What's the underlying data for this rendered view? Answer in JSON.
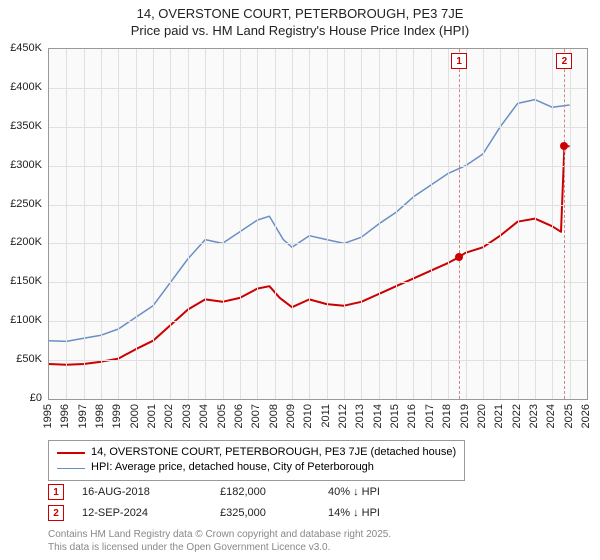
{
  "title": {
    "line1": "14, OVERSTONE COURT, PETERBOROUGH, PE3 7JE",
    "line2": "Price paid vs. HM Land Registry's House Price Index (HPI)"
  },
  "chart": {
    "type": "line",
    "background_color": "#fafafa",
    "grid_color": "#e0e0e0",
    "border_color": "#999999",
    "xlim": [
      1995,
      2026
    ],
    "ylim": [
      0,
      450000
    ],
    "ytick_step": 50000,
    "yticks": [
      {
        "v": 0,
        "label": "£0"
      },
      {
        "v": 50000,
        "label": "£50K"
      },
      {
        "v": 100000,
        "label": "£100K"
      },
      {
        "v": 150000,
        "label": "£150K"
      },
      {
        "v": 200000,
        "label": "£200K"
      },
      {
        "v": 250000,
        "label": "£250K"
      },
      {
        "v": 300000,
        "label": "£300K"
      },
      {
        "v": 350000,
        "label": "£350K"
      },
      {
        "v": 400000,
        "label": "£400K"
      },
      {
        "v": 450000,
        "label": "£450K"
      }
    ],
    "xticks": [
      1995,
      1996,
      1997,
      1998,
      1999,
      2000,
      2001,
      2002,
      2003,
      2004,
      2005,
      2006,
      2007,
      2008,
      2009,
      2010,
      2011,
      2012,
      2013,
      2014,
      2015,
      2016,
      2017,
      2018,
      2019,
      2020,
      2021,
      2022,
      2023,
      2024,
      2025,
      2026
    ],
    "series": [
      {
        "name": "price_paid",
        "label": "14, OVERSTONE COURT, PETERBOROUGH, PE3 7JE (detached house)",
        "color": "#cc0000",
        "line_width": 2,
        "points": [
          [
            1995.0,
            45000
          ],
          [
            1996.0,
            44000
          ],
          [
            1997.0,
            45000
          ],
          [
            1998.0,
            48000
          ],
          [
            1999.0,
            52000
          ],
          [
            2000.0,
            64000
          ],
          [
            2001.0,
            75000
          ],
          [
            2002.0,
            95000
          ],
          [
            2003.0,
            115000
          ],
          [
            2004.0,
            128000
          ],
          [
            2005.0,
            125000
          ],
          [
            2006.0,
            130000
          ],
          [
            2007.0,
            142000
          ],
          [
            2007.7,
            145000
          ],
          [
            2008.3,
            130000
          ],
          [
            2009.0,
            118000
          ],
          [
            2010.0,
            128000
          ],
          [
            2011.0,
            122000
          ],
          [
            2012.0,
            120000
          ],
          [
            2013.0,
            125000
          ],
          [
            2014.0,
            135000
          ],
          [
            2015.0,
            145000
          ],
          [
            2016.0,
            155000
          ],
          [
            2017.0,
            165000
          ],
          [
            2018.0,
            175000
          ],
          [
            2018.6,
            182000
          ],
          [
            2019.0,
            188000
          ],
          [
            2020.0,
            195000
          ],
          [
            2021.0,
            210000
          ],
          [
            2022.0,
            228000
          ],
          [
            2023.0,
            232000
          ],
          [
            2024.0,
            222000
          ],
          [
            2024.5,
            215000
          ],
          [
            2024.7,
            325000
          ],
          [
            2025.0,
            325000
          ]
        ]
      },
      {
        "name": "hpi",
        "label": "HPI: Average price, detached house, City of Peterborough",
        "color": "#6a8fc5",
        "line_width": 1.5,
        "points": [
          [
            1995.0,
            75000
          ],
          [
            1996.0,
            74000
          ],
          [
            1997.0,
            78000
          ],
          [
            1998.0,
            82000
          ],
          [
            1999.0,
            90000
          ],
          [
            2000.0,
            105000
          ],
          [
            2001.0,
            120000
          ],
          [
            2002.0,
            150000
          ],
          [
            2003.0,
            180000
          ],
          [
            2004.0,
            205000
          ],
          [
            2005.0,
            200000
          ],
          [
            2006.0,
            215000
          ],
          [
            2007.0,
            230000
          ],
          [
            2007.7,
            235000
          ],
          [
            2008.5,
            205000
          ],
          [
            2009.0,
            195000
          ],
          [
            2010.0,
            210000
          ],
          [
            2011.0,
            205000
          ],
          [
            2012.0,
            200000
          ],
          [
            2013.0,
            208000
          ],
          [
            2014.0,
            225000
          ],
          [
            2015.0,
            240000
          ],
          [
            2016.0,
            260000
          ],
          [
            2017.0,
            275000
          ],
          [
            2018.0,
            290000
          ],
          [
            2019.0,
            300000
          ],
          [
            2020.0,
            315000
          ],
          [
            2021.0,
            350000
          ],
          [
            2022.0,
            380000
          ],
          [
            2023.0,
            385000
          ],
          [
            2024.0,
            375000
          ],
          [
            2025.0,
            378000
          ]
        ]
      }
    ],
    "callout_points": [
      {
        "n": "1",
        "x": 2018.63,
        "y": 182000,
        "color": "#cc0000"
      },
      {
        "n": "2",
        "x": 2024.7,
        "y": 325000,
        "color": "#cc0000"
      }
    ]
  },
  "legend": {
    "items": [
      {
        "color": "#cc0000",
        "width": 2,
        "label": "14, OVERSTONE COURT, PETERBOROUGH, PE3 7JE (detached house)"
      },
      {
        "color": "#6a8fc5",
        "width": 1.5,
        "label": "HPI: Average price, detached house, City of Peterborough"
      }
    ]
  },
  "callouts": [
    {
      "n": "1",
      "date": "16-AUG-2018",
      "price": "£182,000",
      "pct": "40% ↓ HPI"
    },
    {
      "n": "2",
      "date": "12-SEP-2024",
      "price": "£325,000",
      "pct": "14% ↓ HPI"
    }
  ],
  "footer": {
    "line1": "Contains HM Land Registry data © Crown copyright and database right 2025.",
    "line2": "This data is licensed under the Open Government Licence v3.0."
  }
}
